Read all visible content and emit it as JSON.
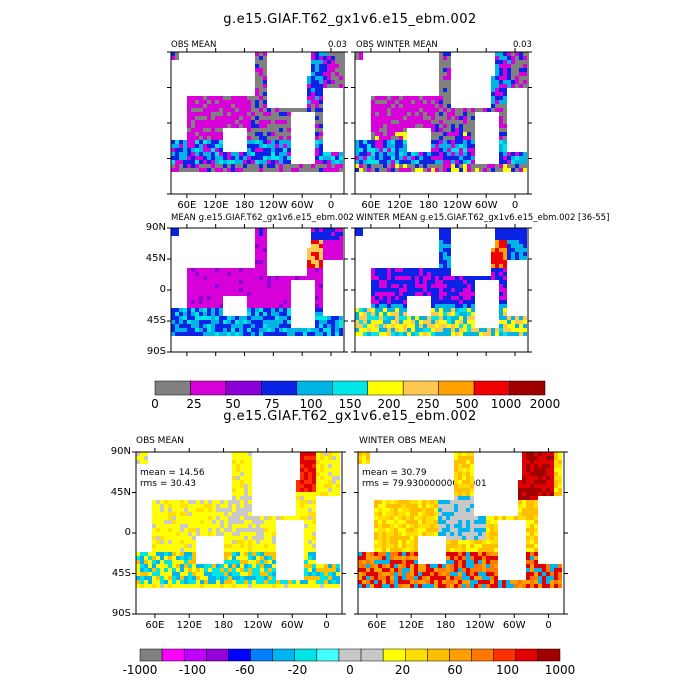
{
  "figure_title_top": "g.e15.GIAF.T62_gx1v6.e15_ebm.002",
  "figure_title_bottom": "g.e15.GIAF.T62_gx1v6.e15_ebm.002",
  "colors": {
    "land": "#ffffff",
    "frame": "#000000",
    "missing": "#808080"
  },
  "chart_data": [
    {
      "type": "heatmap",
      "title": "OBS MEAN",
      "corner_label": "0.03",
      "xticks": [
        "60E",
        "120E",
        "180",
        "120W",
        "60W",
        "0"
      ],
      "yticks": [],
      "levels": [
        "0",
        "25",
        "50",
        "75",
        "100",
        "150",
        "200",
        "250",
        "500",
        "1000",
        "2000"
      ],
      "dominant": [
        "gray",
        "magenta",
        "blue",
        "cyan"
      ]
    },
    {
      "type": "heatmap",
      "title": "OBS WINTER MEAN",
      "corner_label": "0.03",
      "xticks": [
        "60E",
        "120E",
        "180",
        "120W",
        "60W",
        "0"
      ],
      "yticks": [],
      "dominant": [
        "gray",
        "magenta",
        "blue",
        "cyan"
      ]
    },
    {
      "type": "heatmap",
      "title": "MEAN g.e15.GIAF.T62_gx1v6.e15_ebm.002",
      "xticks": [],
      "yticks": [
        "90N",
        "45N",
        "0",
        "45S",
        "90S"
      ],
      "dominant": [
        "magenta",
        "blue",
        "cyan"
      ]
    },
    {
      "type": "heatmap",
      "title": "WINTER MEAN g.e15.GIAF.T62_gx1v6.e15_ebm.002 [36-55]",
      "xticks": [],
      "yticks": [],
      "dominant": [
        "blue",
        "cyan",
        "yellow"
      ]
    },
    {
      "type": "heatmap",
      "title": "OBS MEAN",
      "stats": [
        "mean = 14.56",
        "rms = 30.43"
      ],
      "xticks": [
        "60E",
        "120E",
        "180",
        "120W",
        "60W",
        "0"
      ],
      "yticks": [
        "90N",
        "45N",
        "0",
        "45S",
        "90S"
      ],
      "levels": [
        "-1000",
        "-100",
        "-60",
        "-20",
        "0",
        "20",
        "60",
        "100",
        "1000"
      ],
      "dominant": [
        "yellow",
        "light-gray",
        "cyan"
      ]
    },
    {
      "type": "heatmap",
      "title": "WINTER OBS MEAN",
      "stats": [
        "mean = 30.79",
        "rms = 79.93000000000001"
      ],
      "xticks": [
        "60E",
        "120E",
        "180",
        "120W",
        "60W",
        "0"
      ],
      "yticks": [],
      "dominant": [
        "orange",
        "red",
        "yellow"
      ]
    }
  ],
  "colorbar_top": {
    "colors": [
      "#808080",
      "#d800d8",
      "#8c00d8",
      "#0a23e6",
      "#00b4e6",
      "#00e6e6",
      "#ffff00",
      "#ffc850",
      "#ffa000",
      "#f00000",
      "#a00000"
    ],
    "labels": [
      "0",
      "25",
      "50",
      "75",
      "100",
      "150",
      "200",
      "250",
      "500",
      "1000",
      "2000"
    ]
  },
  "colorbar_bottom": {
    "colors": [
      "#808080",
      "#ff00ff",
      "#c000ff",
      "#9400d8",
      "#0000ff",
      "#0080ff",
      "#00b4f0",
      "#00e6e6",
      "#40ffff",
      "#c8c8c8",
      "#c8c8c8",
      "#ffff00",
      "#ffde00",
      "#ffbe00",
      "#ffa000",
      "#ff7800",
      "#ff3000",
      "#e00000",
      "#a00000"
    ],
    "labels": [
      "-1000",
      "-100",
      "-60",
      "-20",
      "0",
      "20",
      "60",
      "100",
      "1000"
    ]
  }
}
